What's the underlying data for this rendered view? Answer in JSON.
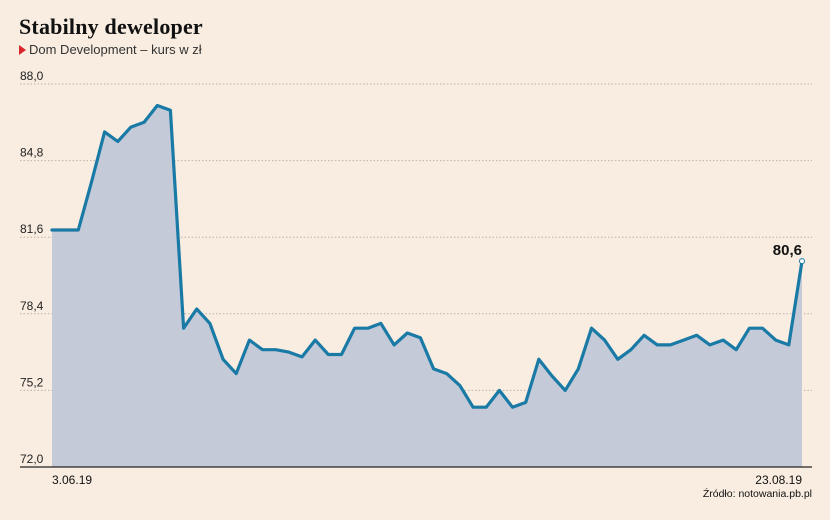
{
  "chart_data": {
    "type": "area",
    "title": "Stabilny deweloper",
    "subtitle": "Dom Development – kurs w zł",
    "source": "Źródło: notowania.pb.pl",
    "ylim": [
      72.0,
      88.0
    ],
    "yticks": [
      {
        "value": 72.0,
        "label": "72,0"
      },
      {
        "value": 75.2,
        "label": "75,2"
      },
      {
        "value": 78.4,
        "label": "78,4"
      },
      {
        "value": 81.6,
        "label": "81,6"
      },
      {
        "value": 84.8,
        "label": "84,8"
      },
      {
        "value": 88.0,
        "label": "88,0"
      }
    ],
    "x_start_label": "3.06.19",
    "x_end_label": "23.08.19",
    "last_value_label": "80,6",
    "grid": true,
    "colors": {
      "line": "#1a7aa6",
      "fill": "#c5cad9",
      "grid": "#b9b0a6"
    },
    "values": [
      81.9,
      81.9,
      81.9,
      83.9,
      86.0,
      85.6,
      86.2,
      86.4,
      87.1,
      86.9,
      77.8,
      78.6,
      78.0,
      76.5,
      75.9,
      77.3,
      76.9,
      76.9,
      76.8,
      76.6,
      77.3,
      76.7,
      76.7,
      77.8,
      77.8,
      78.0,
      77.1,
      77.6,
      77.4,
      76.1,
      75.9,
      75.4,
      74.5,
      74.5,
      75.2,
      74.5,
      74.7,
      76.5,
      75.8,
      75.2,
      76.1,
      77.8,
      77.3,
      76.5,
      76.9,
      77.5,
      77.1,
      77.1,
      77.3,
      77.5,
      77.1,
      77.3,
      76.9,
      77.8,
      77.8,
      77.3,
      77.1,
      80.6
    ]
  }
}
